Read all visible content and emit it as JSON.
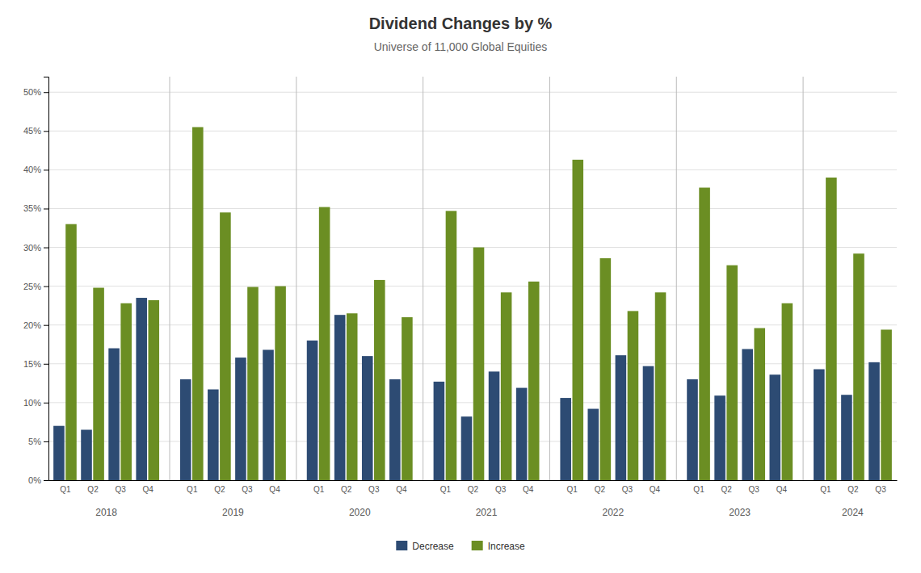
{
  "chart_data": {
    "type": "bar",
    "title": "Dividend Changes by %",
    "subtitle": "Universe of 11,000 Global Equities",
    "categories": [
      "Q1",
      "Q2",
      "Q3",
      "Q4",
      "Q1",
      "Q2",
      "Q3",
      "Q4",
      "Q1",
      "Q2",
      "Q3",
      "Q4",
      "Q1",
      "Q2",
      "Q3",
      "Q4",
      "Q1",
      "Q2",
      "Q3",
      "Q4",
      "Q1",
      "Q2",
      "Q3",
      "Q4",
      "Q1",
      "Q2",
      "Q3"
    ],
    "groups": [
      "2018",
      "2019",
      "2020",
      "2021",
      "2022",
      "2023",
      "2024"
    ],
    "series": [
      {
        "name": "Decrease",
        "color": "#2d4b73",
        "values": [
          0.07,
          0.065,
          0.17,
          0.235,
          0.13,
          0.117,
          0.158,
          0.168,
          0.18,
          0.213,
          0.16,
          0.13,
          0.127,
          0.082,
          0.14,
          0.119,
          0.106,
          0.092,
          0.161,
          0.147,
          0.13,
          0.109,
          0.169,
          0.136,
          0.143,
          0.11,
          0.152
        ]
      },
      {
        "name": "Increase",
        "color": "#6b8e23",
        "values": [
          0.33,
          0.248,
          0.228,
          0.232,
          0.455,
          0.345,
          0.249,
          0.25,
          0.352,
          0.215,
          0.258,
          0.21,
          0.347,
          0.3,
          0.242,
          0.256,
          0.413,
          0.286,
          0.218,
          0.242,
          0.377,
          0.277,
          0.196,
          0.228,
          0.39,
          0.292,
          0.194
        ]
      }
    ],
    "ylim": [
      0,
      0.52
    ],
    "yticks": [
      {
        "value": 0.0,
        "label": "0%"
      },
      {
        "value": 0.05,
        "label": "5%"
      },
      {
        "value": 0.1,
        "label": "10%"
      },
      {
        "value": 0.15,
        "label": "15%"
      },
      {
        "value": 0.2,
        "label": "20%"
      },
      {
        "value": 0.25,
        "label": "25%"
      },
      {
        "value": 0.3,
        "label": "30%"
      },
      {
        "value": 0.35,
        "label": "35%"
      },
      {
        "value": 0.4,
        "label": "40%"
      },
      {
        "value": 0.45,
        "label": "45%"
      },
      {
        "value": 0.5,
        "label": "50%"
      }
    ],
    "grid": true,
    "legend": "bottom"
  }
}
